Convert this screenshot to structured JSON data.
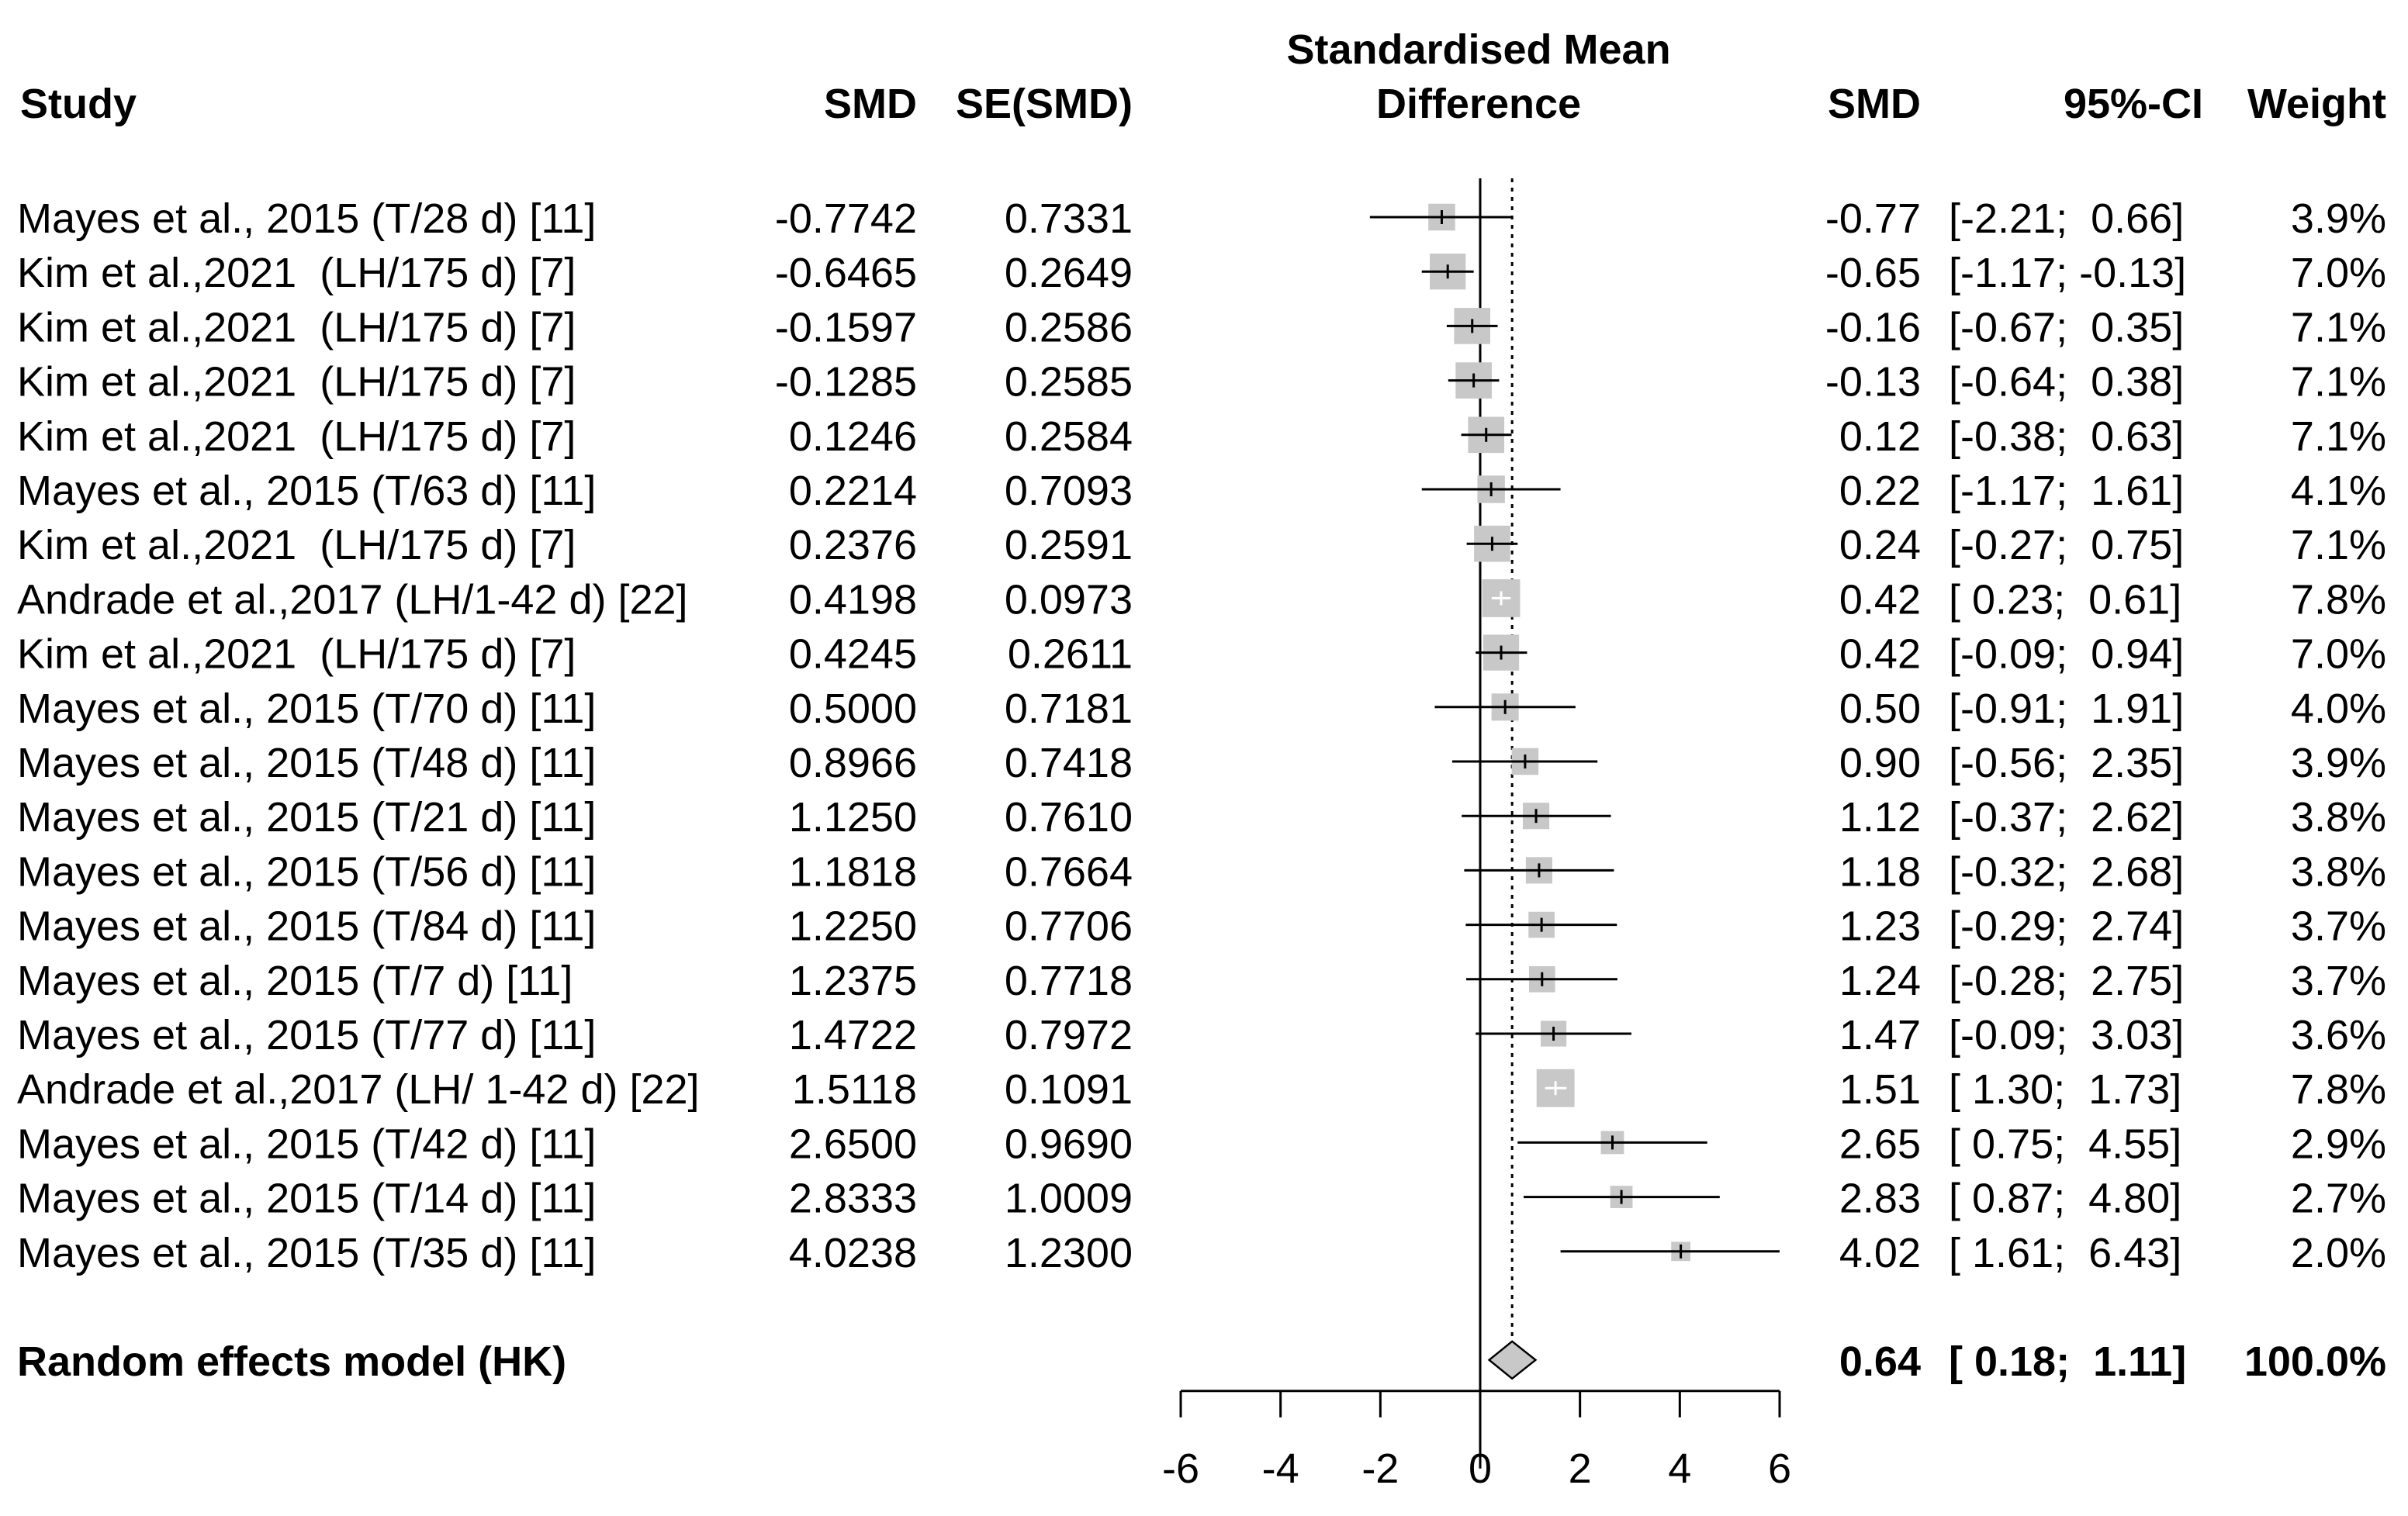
{
  "chart_data": {
    "type": "forest",
    "title": "",
    "columns": {
      "study": "Study",
      "smd": "SMD",
      "se": "SE(SMD)",
      "plot_header_line1": "Standardised Mean",
      "plot_header_line2": "Difference",
      "smd2": "SMD",
      "ci": "95%-CI",
      "weight": "Weight"
    },
    "xlim": [
      -6,
      6
    ],
    "x_ticks": [
      -6,
      -4,
      -2,
      0,
      2,
      4,
      6
    ],
    "x_tick_labels": [
      "-6",
      "-4",
      "-2",
      "0",
      "2",
      "4",
      "6"
    ],
    "studies": [
      {
        "study": "Mayes et al., 2015 (T/28 d) [11]",
        "smd_text": "-0.7742",
        "se_text": "0.7331",
        "smd_short": "-0.77",
        "ci_text": "[-2.21;  0.66]",
        "weight_text": "3.9%",
        "est": -0.77,
        "lo": -2.21,
        "hi": 0.66,
        "weight": 3.9
      },
      {
        "study": "Kim et al.,2021  (LH/175 d) [7]",
        "smd_text": "-0.6465",
        "se_text": "0.2649",
        "smd_short": "-0.65",
        "ci_text": "[-1.17; -0.13]",
        "weight_text": "7.0%",
        "est": -0.65,
        "lo": -1.17,
        "hi": -0.13,
        "weight": 7.0
      },
      {
        "study": "Kim et al.,2021  (LH/175 d) [7]",
        "smd_text": "-0.1597",
        "se_text": "0.2586",
        "smd_short": "-0.16",
        "ci_text": "[-0.67;  0.35]",
        "weight_text": "7.1%",
        "est": -0.16,
        "lo": -0.67,
        "hi": 0.35,
        "weight": 7.1
      },
      {
        "study": "Kim et al.,2021  (LH/175 d) [7]",
        "smd_text": "-0.1285",
        "se_text": "0.2585",
        "smd_short": "-0.13",
        "ci_text": "[-0.64;  0.38]",
        "weight_text": "7.1%",
        "est": -0.13,
        "lo": -0.64,
        "hi": 0.38,
        "weight": 7.1
      },
      {
        "study": "Kim et al.,2021  (LH/175 d) [7]",
        "smd_text": "0.1246",
        "se_text": "0.2584",
        "smd_short": "0.12",
        "ci_text": "[-0.38;  0.63]",
        "weight_text": "7.1%",
        "est": 0.12,
        "lo": -0.38,
        "hi": 0.63,
        "weight": 7.1
      },
      {
        "study": "Mayes et al., 2015 (T/63 d) [11]",
        "smd_text": "0.2214",
        "se_text": "0.7093",
        "smd_short": "0.22",
        "ci_text": "[-1.17;  1.61]",
        "weight_text": "4.1%",
        "est": 0.22,
        "lo": -1.17,
        "hi": 1.61,
        "weight": 4.1
      },
      {
        "study": "Kim et al.,2021  (LH/175 d) [7]",
        "smd_text": "0.2376",
        "se_text": "0.2591",
        "smd_short": "0.24",
        "ci_text": "[-0.27;  0.75]",
        "weight_text": "7.1%",
        "est": 0.24,
        "lo": -0.27,
        "hi": 0.75,
        "weight": 7.1
      },
      {
        "study": "Andrade et al.,2017 (LH/1-42 d) [22]",
        "smd_text": "0.4198",
        "se_text": "0.0973",
        "smd_short": "0.42",
        "ci_text": "[ 0.23;  0.61]",
        "weight_text": "7.8%",
        "est": 0.42,
        "lo": 0.23,
        "hi": 0.61,
        "weight": 7.8
      },
      {
        "study": "Kim et al.,2021  (LH/175 d) [7]",
        "smd_text": "0.4245",
        "se_text": "0.2611",
        "smd_short": "0.42",
        "ci_text": "[-0.09;  0.94]",
        "weight_text": "7.0%",
        "est": 0.42,
        "lo": -0.09,
        "hi": 0.94,
        "weight": 7.0
      },
      {
        "study": "Mayes et al., 2015 (T/70 d) [11]",
        "smd_text": "0.5000",
        "se_text": "0.7181",
        "smd_short": "0.50",
        "ci_text": "[-0.91;  1.91]",
        "weight_text": "4.0%",
        "est": 0.5,
        "lo": -0.91,
        "hi": 1.91,
        "weight": 4.0
      },
      {
        "study": "Mayes et al., 2015 (T/48 d) [11]",
        "smd_text": "0.8966",
        "se_text": "0.7418",
        "smd_short": "0.90",
        "ci_text": "[-0.56;  2.35]",
        "weight_text": "3.9%",
        "est": 0.9,
        "lo": -0.56,
        "hi": 2.35,
        "weight": 3.9
      },
      {
        "study": "Mayes et al., 2015 (T/21 d) [11]",
        "smd_text": "1.1250",
        "se_text": "0.7610",
        "smd_short": "1.12",
        "ci_text": "[-0.37;  2.62]",
        "weight_text": "3.8%",
        "est": 1.12,
        "lo": -0.37,
        "hi": 2.62,
        "weight": 3.8
      },
      {
        "study": "Mayes et al., 2015 (T/56 d) [11]",
        "smd_text": "1.1818",
        "se_text": "0.7664",
        "smd_short": "1.18",
        "ci_text": "[-0.32;  2.68]",
        "weight_text": "3.8%",
        "est": 1.18,
        "lo": -0.32,
        "hi": 2.68,
        "weight": 3.8
      },
      {
        "study": "Mayes et al., 2015 (T/84 d) [11]",
        "smd_text": "1.2250",
        "se_text": "0.7706",
        "smd_short": "1.23",
        "ci_text": "[-0.29;  2.74]",
        "weight_text": "3.7%",
        "est": 1.23,
        "lo": -0.29,
        "hi": 2.74,
        "weight": 3.7
      },
      {
        "study": "Mayes et al., 2015 (T/7 d) [11]",
        "smd_text": "1.2375",
        "se_text": "0.7718",
        "smd_short": "1.24",
        "ci_text": "[-0.28;  2.75]",
        "weight_text": "3.7%",
        "est": 1.24,
        "lo": -0.28,
        "hi": 2.75,
        "weight": 3.7
      },
      {
        "study": "Mayes et al., 2015 (T/77 d) [11]",
        "smd_text": "1.4722",
        "se_text": "0.7972",
        "smd_short": "1.47",
        "ci_text": "[-0.09;  3.03]",
        "weight_text": "3.6%",
        "est": 1.47,
        "lo": -0.09,
        "hi": 3.03,
        "weight": 3.6
      },
      {
        "study": "Andrade et al.,2017 (LH/ 1-42 d) [22]",
        "smd_text": "1.5118",
        "se_text": "0.1091",
        "smd_short": "1.51",
        "ci_text": "[ 1.30;  1.73]",
        "weight_text": "7.8%",
        "est": 1.51,
        "lo": 1.3,
        "hi": 1.73,
        "weight": 7.8
      },
      {
        "study": "Mayes et al., 2015 (T/42 d) [11]",
        "smd_text": "2.6500",
        "se_text": "0.9690",
        "smd_short": "2.65",
        "ci_text": "[ 0.75;  4.55]",
        "weight_text": "2.9%",
        "est": 2.65,
        "lo": 0.75,
        "hi": 4.55,
        "weight": 2.9
      },
      {
        "study": "Mayes et al., 2015 (T/14 d) [11]",
        "smd_text": "2.8333",
        "se_text": "1.0009",
        "smd_short": "2.83",
        "ci_text": "[ 0.87;  4.80]",
        "weight_text": "2.7%",
        "est": 2.83,
        "lo": 0.87,
        "hi": 4.8,
        "weight": 2.7
      },
      {
        "study": "Mayes et al., 2015 (T/35 d) [11]",
        "smd_text": "4.0238",
        "se_text": "1.2300",
        "smd_short": "4.02",
        "ci_text": "[ 1.61;  6.43]",
        "weight_text": "2.0%",
        "est": 4.02,
        "lo": 1.61,
        "hi": 6.43,
        "weight": 2.0
      }
    ],
    "pooled": {
      "label": "Random effects model (HK)",
      "smd_short": "0.64",
      "ci_text": "[ 0.18;  1.11]",
      "weight_text": "100.0%",
      "est": 0.64,
      "lo": 0.18,
      "hi": 1.11
    },
    "reference_line": 0,
    "colors": {
      "box": "#c8c8c8",
      "ci_line": "#000000",
      "diamond_fill": "#c8c8c8",
      "text": "#000000"
    }
  }
}
